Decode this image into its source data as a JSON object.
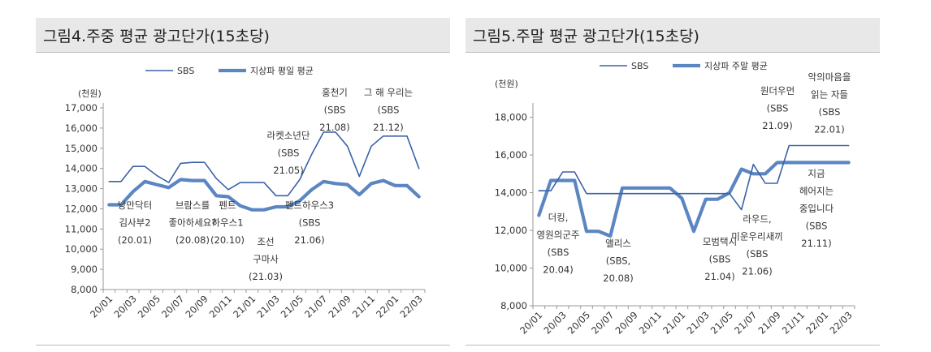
{
  "charts": [
    {
      "title": "그림4.주중 평균 광고단가(15초당)",
      "unit_label": "(천원)",
      "chart_data": {
        "type": "line",
        "x": [
          "20/01",
          "20/02",
          "20/03",
          "20/04",
          "20/05",
          "20/06",
          "20/07",
          "20/08",
          "20/09",
          "20/10",
          "20/11",
          "20/12",
          "21/01",
          "21/02",
          "21/03",
          "21/04",
          "21/05",
          "21/06",
          "21/07",
          "21/08",
          "21/09",
          "21/10",
          "21/11",
          "21/12",
          "22/01",
          "22/02",
          "22/03"
        ],
        "x_tick_labels": [
          "20/01",
          "20/03",
          "20/05",
          "20/07",
          "20/09",
          "20/11",
          "21/01",
          "21/03",
          "21/05",
          "21/07",
          "21/09",
          "21/11",
          "22/01",
          "22/03"
        ],
        "ylim": [
          8000,
          17000
        ],
        "y_ticks": [
          "8,000",
          "9,000",
          "10,000",
          "11,000",
          "12,000",
          "13,000",
          "14,000",
          "15,000",
          "16,000",
          "17,000"
        ],
        "grid": false,
        "legend": "top",
        "series": [
          {
            "name": "SBS",
            "color": "#3a62a7",
            "values": [
              13350,
              13350,
              14100,
              14100,
              13650,
              13300,
              14250,
              14300,
              14300,
              13500,
              12950,
              13300,
              13300,
              13300,
              12650,
              12650,
              13450,
              14700,
              15800,
              15800,
              15100,
              13600,
              15100,
              15600,
              15600,
              15600,
              14000
            ]
          },
          {
            "name": "지상파 평일 평균",
            "color": "#5b86c2",
            "values": [
              12200,
              12200,
              12850,
              13350,
              13200,
              13050,
              13450,
              13400,
              13400,
              12650,
              12600,
              12150,
              11950,
              11950,
              12100,
              12100,
              12400,
              12950,
              13350,
              13250,
              13200,
              12700,
              13250,
              13400,
              13150,
              13150,
              12600
            ]
          }
        ],
        "annotations": [
          {
            "lines": [
              "낭만닥터",
              "김사부2",
              "(20.01)"
            ]
          },
          {
            "lines": [
              "브람스를",
              "좋아하세요?",
              "(20.08)"
            ]
          },
          {
            "lines": [
              "펜트",
              "하우스1",
              "(20.10)"
            ]
          },
          {
            "lines": [
              "조선",
              "구마사",
              "(21.03)"
            ]
          },
          {
            "lines": [
              "펜트하우스3",
              "(SBS",
              "21.06)"
            ]
          },
          {
            "lines": [
              "라켓소년단",
              "(SBS",
              "21.05)"
            ]
          },
          {
            "lines": [
              "홍천기",
              "(SBS",
              "21.08)"
            ]
          },
          {
            "lines": [
              "그 해 우리는",
              "(SBS",
              "21.12)"
            ]
          }
        ]
      }
    },
    {
      "title": "그림5.주말 평균 광고단가(15초당)",
      "unit_label": "(천원)",
      "chart_data": {
        "type": "line",
        "x": [
          "20/01",
          "20/02",
          "20/03",
          "20/04",
          "20/05",
          "20/06",
          "20/07",
          "20/08",
          "20/09",
          "20/10",
          "20/11",
          "20/12",
          "21/01",
          "21/02",
          "21/03",
          "21/04",
          "21/05",
          "21/06",
          "21/07",
          "21/08",
          "21/09",
          "21/10",
          "21/11",
          "21/12",
          "22/01",
          "22/02",
          "22/03"
        ],
        "x_tick_labels": [
          "20/01",
          "20/03",
          "20/05",
          "20/07",
          "20/09",
          "20/11",
          "21/01",
          "21/03",
          "21/05",
          "21/07",
          "21/09",
          "21/11",
          "22/01",
          "22/03"
        ],
        "ylim": [
          8000,
          18500
        ],
        "y_ticks": [
          "8,000",
          "10,000",
          "12,000",
          "14,000",
          "16,000",
          "18,000"
        ],
        "grid": false,
        "legend": "top",
        "series": [
          {
            "name": "SBS",
            "color": "#3a62a7",
            "values": [
              14100,
              14100,
              15100,
              15100,
              13950,
              13950,
              13950,
              13950,
              13950,
              13950,
              13950,
              13950,
              13950,
              13950,
              13950,
              13950,
              13950,
              13100,
              15500,
              14500,
              14500,
              16500,
              16500,
              16500,
              16500,
              16500,
              16500
            ]
          },
          {
            "name": "지상파 주말 평균",
            "color": "#5b86c2",
            "values": [
              12800,
              14650,
              14650,
              14650,
              11950,
              11950,
              11700,
              14250,
              14250,
              14250,
              14250,
              14250,
              13700,
              11950,
              13650,
              13650,
              14000,
              15250,
              15000,
              15000,
              15600,
              15600,
              15600,
              15600,
              15600,
              15600,
              15600
            ]
          }
        ],
        "annotations": [
          {
            "lines": [
              "더킹,",
              "영원의군주",
              "(SBS",
              "20.04)"
            ]
          },
          {
            "lines": [
              "앨리스",
              "(SBS,",
              "20.08)"
            ]
          },
          {
            "lines": [
              "모범택시",
              "(SBS",
              "21.04)"
            ]
          },
          {
            "lines": [
              "라우드,",
              "미운우리새끼",
              "(SBS",
              "21.06)"
            ]
          },
          {
            "lines": [
              "원더우먼",
              "(SBS",
              "21.09)"
            ]
          },
          {
            "lines": [
              "지금",
              "헤어지는",
              "중입니다",
              "(SBS",
              "21.11)"
            ]
          },
          {
            "lines": [
              "악의마음을",
              "읽는 자들",
              "(SBS",
              "22.01)"
            ]
          }
        ]
      }
    }
  ]
}
